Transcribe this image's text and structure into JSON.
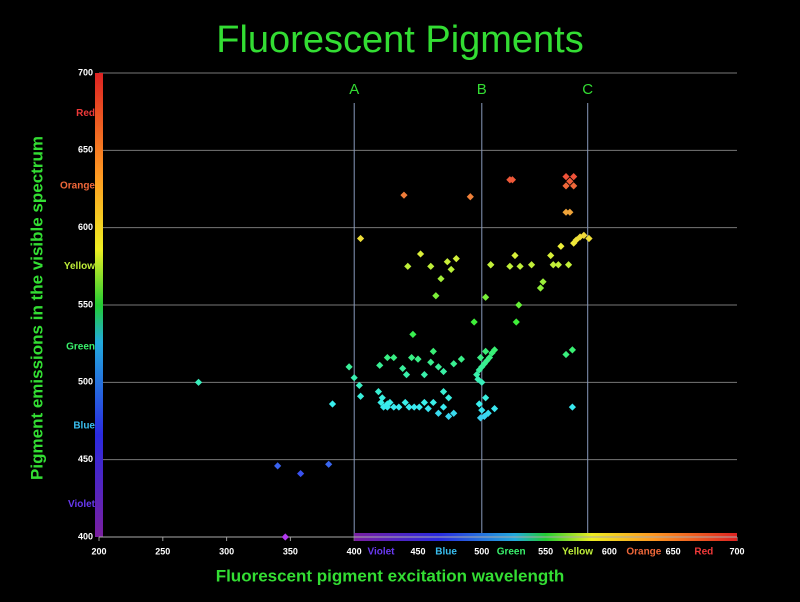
{
  "chart_data": {
    "type": "scatter",
    "title": "Fluorescent Pigments",
    "xlabel": "Fluorescent pigment excitation wavelength",
    "ylabel": "Pigment emissions in the visible spectrum",
    "xlim": [
      200,
      700
    ],
    "ylim": [
      400,
      700
    ],
    "xticks": [
      200,
      250,
      300,
      350,
      400,
      450,
      500,
      550,
      600,
      650,
      700
    ],
    "yticks": [
      400,
      450,
      500,
      550,
      600,
      650,
      700
    ],
    "grid": true,
    "color_by": "wavelength",
    "spectrum": [
      {
        "label": "Violet",
        "value": 421
      },
      {
        "label": "Blue",
        "value": 472
      },
      {
        "label": "Green",
        "value": 523
      },
      {
        "label": "Yellow",
        "value": 575
      },
      {
        "label": "Orange",
        "value": 627
      },
      {
        "label": "Red",
        "value": 674
      }
    ],
    "annotations": [
      {
        "label": "A",
        "x": 400
      },
      {
        "label": "B",
        "x": 500
      },
      {
        "label": "C",
        "x": 583
      }
    ],
    "x": [
      278,
      340,
      358,
      380,
      346,
      383,
      396,
      400,
      404,
      405,
      405,
      439,
      419,
      422,
      426,
      420,
      426,
      431,
      438,
      441,
      445,
      450,
      446,
      421,
      423,
      426,
      428,
      431,
      435,
      440,
      443,
      447,
      451,
      455,
      458,
      462,
      466,
      470,
      474,
      478,
      474,
      470,
      496,
      498,
      500,
      502,
      504,
      506,
      508,
      510,
      499,
      503,
      497,
      500,
      498,
      500,
      502,
      505,
      510,
      499,
      503,
      455,
      460,
      462,
      466,
      470,
      478,
      484,
      442,
      452,
      460,
      468,
      476,
      480,
      464,
      473,
      491,
      494,
      503,
      507,
      507,
      522,
      524,
      522,
      526,
      530,
      529,
      527,
      539,
      546,
      548,
      554,
      556,
      560,
      562,
      566,
      568,
      572,
      574,
      577,
      580,
      569,
      566,
      572,
      566,
      572,
      569,
      566,
      571,
      571,
      584
    ],
    "values": [
      500,
      446,
      441,
      447,
      400,
      486,
      510,
      503,
      498,
      491,
      593,
      621,
      494,
      490,
      486,
      511,
      516,
      516,
      509,
      505,
      516,
      515,
      531,
      487,
      484,
      484,
      487,
      484,
      484,
      487,
      484,
      484,
      484,
      487,
      483,
      487,
      480,
      484,
      478,
      480,
      490,
      494,
      505,
      508,
      510,
      512,
      514,
      516,
      519,
      521,
      516,
      520,
      502,
      500,
      486,
      482,
      478,
      480,
      483,
      477,
      490,
      505,
      513,
      520,
      510,
      507,
      512,
      515,
      575,
      583,
      575,
      567,
      573,
      580,
      556,
      578,
      620,
      539,
      555,
      576,
      576,
      631,
      631,
      575,
      582,
      575,
      550,
      539,
      576,
      561,
      565,
      582,
      576,
      576,
      588,
      610,
      576,
      590,
      592,
      594,
      595,
      610,
      633,
      633,
      627,
      627,
      630,
      518,
      521,
      484,
      593
    ]
  }
}
